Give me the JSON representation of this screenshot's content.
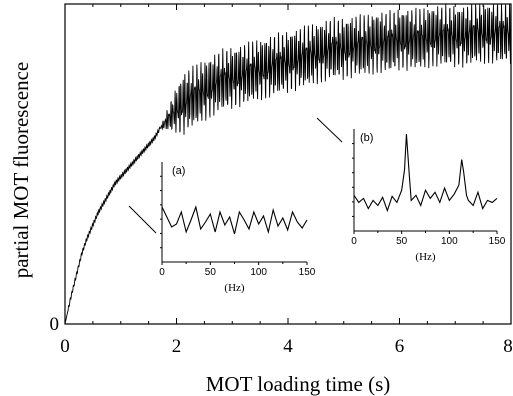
{
  "chart_data": [
    {
      "type": "line",
      "role": "main",
      "xlabel": "MOT loading time (s)",
      "ylabel": "partial MOT fluorescence",
      "xlim": [
        0,
        8
      ],
      "ylim": [
        0,
        1
      ],
      "x_ticks": [
        "0",
        "2",
        "4",
        "6",
        "8"
      ],
      "y_ticks": [
        "0"
      ],
      "series": [
        {
          "x": [
            0,
            0.1,
            0.2,
            0.3,
            0.4,
            0.5,
            0.6,
            0.7,
            0.8,
            0.9,
            1.0,
            1.1,
            1.2,
            1.3,
            1.4,
            1.5,
            1.6,
            1.7,
            1.8,
            1.9,
            2.0,
            2.2,
            2.4,
            2.6,
            2.8,
            3.0,
            3.2,
            3.4,
            3.6,
            3.8,
            4.0,
            4.2,
            4.4,
            4.6,
            4.8,
            5.0,
            5.2,
            5.4,
            5.6,
            5.8,
            6.0,
            6.2,
            6.4,
            6.6,
            6.8,
            7.0,
            7.2,
            7.4,
            7.6,
            7.8,
            8.0
          ],
          "y": [
            0,
            0.08,
            0.15,
            0.22,
            0.27,
            0.31,
            0.35,
            0.38,
            0.41,
            0.44,
            0.46,
            0.48,
            0.5,
            0.52,
            0.54,
            0.56,
            0.58,
            0.61,
            0.63,
            0.65,
            0.67,
            0.7,
            0.72,
            0.74,
            0.76,
            0.77,
            0.78,
            0.79,
            0.8,
            0.81,
            0.82,
            0.83,
            0.84,
            0.85,
            0.86,
            0.86,
            0.87,
            0.87,
            0.88,
            0.88,
            0.89,
            0.89,
            0.89,
            0.9,
            0.9,
            0.9,
            0.9,
            0.91,
            0.91,
            0.91,
            0.91
          ],
          "oscillation_onset_x": 1.7,
          "oscillation_amplitude": 0.1
        }
      ]
    },
    {
      "type": "line",
      "role": "inset",
      "panel_label": "(a)",
      "xlabel": "(Hz)",
      "x_ticks": [
        "0",
        "50",
        "100",
        "150"
      ],
      "xlim": [
        0,
        150
      ],
      "ylim": [
        0,
        1
      ],
      "series": [
        {
          "x": [
            0,
            5,
            10,
            15,
            20,
            25,
            30,
            35,
            40,
            45,
            50,
            55,
            60,
            65,
            70,
            75,
            80,
            85,
            90,
            95,
            100,
            105,
            110,
            115,
            120,
            125,
            130,
            135,
            140,
            145,
            150
          ],
          "y": [
            0.55,
            0.45,
            0.35,
            0.38,
            0.5,
            0.3,
            0.42,
            0.55,
            0.33,
            0.4,
            0.48,
            0.3,
            0.5,
            0.37,
            0.45,
            0.28,
            0.5,
            0.42,
            0.33,
            0.5,
            0.38,
            0.46,
            0.3,
            0.52,
            0.36,
            0.44,
            0.32,
            0.5,
            0.4,
            0.34,
            0.42
          ]
        }
      ]
    },
    {
      "type": "line",
      "role": "inset",
      "panel_label": "(b)",
      "xlabel": "(Hz)",
      "x_ticks": [
        "0",
        "50",
        "100",
        "150"
      ],
      "xlim": [
        0,
        150
      ],
      "ylim": [
        0,
        1
      ],
      "series": [
        {
          "x": [
            0,
            5,
            10,
            15,
            20,
            25,
            30,
            35,
            40,
            45,
            50,
            53,
            55,
            58,
            60,
            65,
            70,
            75,
            80,
            85,
            90,
            95,
            100,
            105,
            110,
            113,
            115,
            118,
            120,
            125,
            130,
            135,
            140,
            145,
            150
          ],
          "y": [
            0.35,
            0.28,
            0.32,
            0.22,
            0.3,
            0.25,
            0.33,
            0.2,
            0.34,
            0.28,
            0.4,
            0.6,
            0.95,
            0.55,
            0.3,
            0.35,
            0.25,
            0.4,
            0.32,
            0.38,
            0.28,
            0.42,
            0.3,
            0.36,
            0.45,
            0.7,
            0.58,
            0.35,
            0.3,
            0.25,
            0.38,
            0.22,
            0.3,
            0.28,
            0.32
          ]
        }
      ]
    }
  ]
}
